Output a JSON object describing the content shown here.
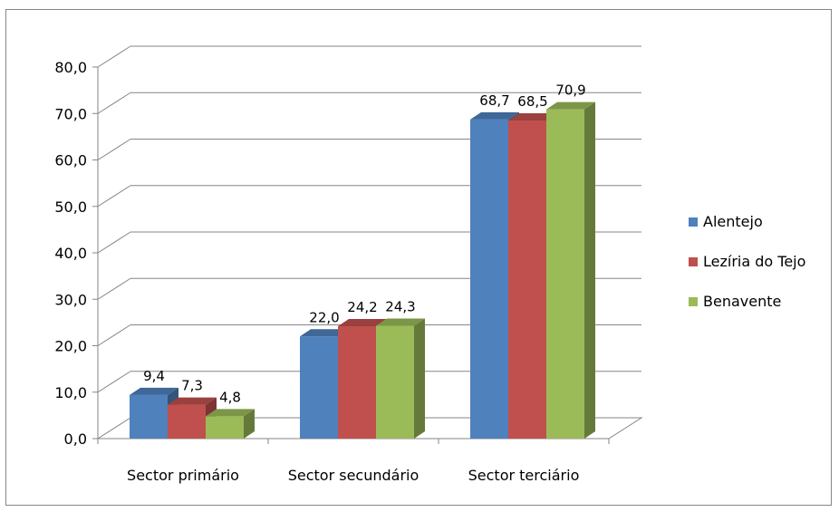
{
  "chart_data": {
    "type": "bar",
    "categories": [
      "Sector primário",
      "Sector secundário",
      "Sector terciário"
    ],
    "series": [
      {
        "name": "Alentejo",
        "values": [
          9.4,
          22.0,
          68.7
        ],
        "labels": [
          "9,4",
          "22,0",
          "68,7"
        ],
        "color": "#4F81BD"
      },
      {
        "name": "Lezíria do Tejo",
        "values": [
          7.3,
          24.2,
          68.5
        ],
        "labels": [
          "7,3",
          "24,2",
          "68,5"
        ],
        "color": "#C0504D"
      },
      {
        "name": "Benavente",
        "values": [
          4.8,
          24.3,
          70.9
        ],
        "labels": [
          "4,8",
          "24,3",
          "70,9"
        ],
        "color": "#9BBB59"
      }
    ],
    "ylim": [
      0,
      80
    ],
    "yticks": [
      "0,0",
      "10,0",
      "20,0",
      "30,0",
      "40,0",
      "50,0",
      "60,0",
      "70,0",
      "80,0"
    ],
    "grid": true,
    "legend": "right",
    "title": "",
    "xlabel": "",
    "ylabel": ""
  }
}
